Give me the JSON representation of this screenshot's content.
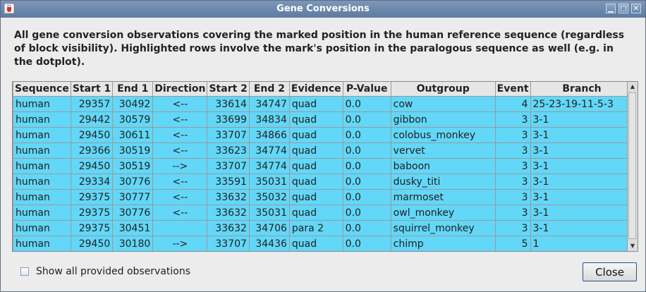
{
  "window": {
    "title": "Gene Conversions",
    "icons": {
      "app": "java-cup-icon",
      "minimize": "minimize-icon",
      "maximize": "maximize-icon",
      "close": "close-icon"
    }
  },
  "description": "All gene conversion observations covering the marked position in the human reference sequence (regardless of block visibility).  Highlighted rows involve the mark's position in the paralogous sequence as well (e.g. in the dotplot).",
  "table": {
    "headers": [
      "Sequence",
      "Start 1",
      "End 1",
      "Direction",
      "Start 2",
      "End 2",
      "Evidence",
      "P-Value",
      "Outgroup",
      "Event",
      "Branch"
    ],
    "highlight_color": "#62d7f7",
    "rows": [
      [
        "human",
        "29357",
        "30492",
        "<--",
        "33614",
        "34747",
        "quad",
        "0.0",
        "cow",
        "4",
        "25-23-19-11-5-3"
      ],
      [
        "human",
        "29442",
        "30579",
        "<--",
        "33699",
        "34834",
        "quad",
        "0.0",
        "gibbon",
        "3",
        "3-1"
      ],
      [
        "human",
        "29450",
        "30611",
        "<--",
        "33707",
        "34866",
        "quad",
        "0.0",
        "colobus_monkey",
        "3",
        "3-1"
      ],
      [
        "human",
        "29366",
        "30519",
        "<--",
        "33623",
        "34774",
        "quad",
        "0.0",
        "vervet",
        "3",
        "3-1"
      ],
      [
        "human",
        "29450",
        "30519",
        "-->",
        "33707",
        "34774",
        "quad",
        "0.0",
        "baboon",
        "3",
        "3-1"
      ],
      [
        "human",
        "29334",
        "30776",
        "<--",
        "33591",
        "35031",
        "quad",
        "0.0",
        "dusky_titi",
        "3",
        "3-1"
      ],
      [
        "human",
        "29375",
        "30777",
        "<--",
        "33632",
        "35032",
        "quad",
        "0.0",
        "marmoset",
        "3",
        "3-1"
      ],
      [
        "human",
        "29375",
        "30776",
        "<--",
        "33632",
        "35031",
        "quad",
        "0.0",
        "owl_monkey",
        "3",
        "3-1"
      ],
      [
        "human",
        "29375",
        "30451",
        "",
        "33632",
        "34706",
        "para 2",
        "0.0",
        "squirrel_monkey",
        "3",
        "3-1"
      ],
      [
        "human",
        "29450",
        "30180",
        "-->",
        "33707",
        "34436",
        "quad",
        "0.0",
        "chimp",
        "5",
        "1"
      ]
    ]
  },
  "show_all_label": "Show all provided observations",
  "show_all_checked": false,
  "close_label": "Close"
}
